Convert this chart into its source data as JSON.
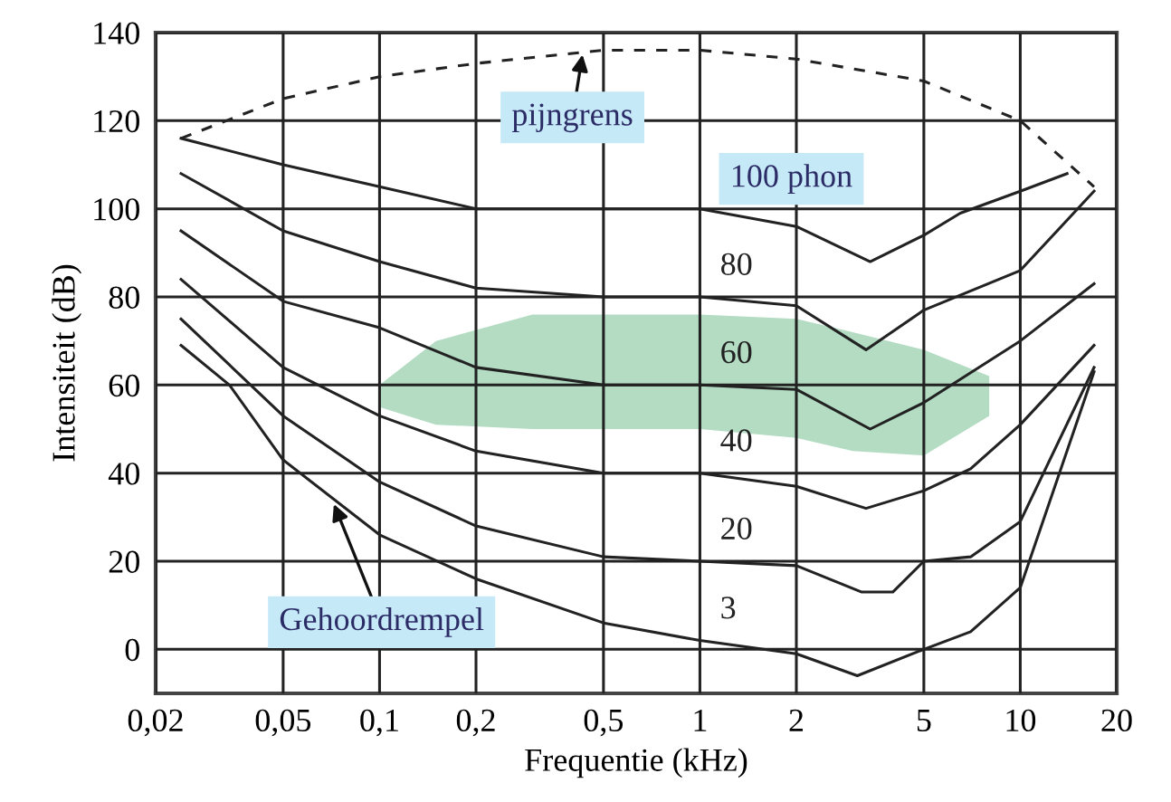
{
  "chart_data": {
    "type": "line",
    "xlabel": "Frequentie (kHz)",
    "ylabel": "Intensiteit (dB)",
    "log": "x",
    "xlim": [
      0.02,
      20
    ],
    "ylim": [
      -10,
      140
    ],
    "xticks": [
      {
        "value": 0.02,
        "label": "0,02"
      },
      {
        "value": 0.05,
        "label": "0,05"
      },
      {
        "value": 0.1,
        "label": "0,1"
      },
      {
        "value": 0.2,
        "label": "0,2"
      },
      {
        "value": 0.5,
        "label": "0,5"
      },
      1,
      2,
      5,
      10,
      20
    ],
    "yticks": [
      0,
      20,
      40,
      60,
      80,
      100,
      120,
      140
    ],
    "grid": true,
    "marker": "none",
    "series": [
      {
        "color": "#b3dcc3",
        "x": [
          0.1,
          0.15,
          0.3,
          1,
          2,
          3,
          5,
          8
        ],
        "values": [
          null,
          null,
          null,
          null,
          null,
          null,
          null,
          null
        ],
        "lower": [
          55,
          51,
          50,
          50,
          48,
          45,
          44,
          53
        ],
        "upper": [
          60,
          70,
          76,
          76,
          75,
          72,
          68,
          62
        ]
      },
      {
        "color": "#222222",
        "line_style": "dashed",
        "x": [
          0.024,
          0.05,
          0.1,
          0.2,
          0.5,
          1,
          2,
          5,
          10,
          17
        ],
        "values": [
          116,
          125,
          130,
          133,
          136,
          136,
          134,
          129,
          120,
          105
        ]
      },
      {
        "name": "100 phon",
        "color": "#222222",
        "x": [
          0.024,
          0.05,
          0.1,
          0.2,
          0.5,
          1,
          2,
          3.4,
          5,
          6.5,
          10,
          14
        ],
        "values": [
          116,
          110,
          105,
          100,
          100,
          100,
          96,
          88,
          94,
          99,
          104,
          108
        ]
      },
      {
        "name": "80",
        "color": "#222222",
        "x": [
          0.024,
          0.05,
          0.1,
          0.2,
          0.5,
          1,
          2,
          3.3,
          5,
          10,
          17
        ],
        "values": [
          108,
          95,
          88,
          82,
          80,
          80,
          78,
          68,
          77,
          86,
          104
        ]
      },
      {
        "name": "60",
        "color": "#222222",
        "x": [
          0.024,
          0.05,
          0.1,
          0.2,
          0.5,
          1,
          2,
          3.4,
          5,
          10,
          17
        ],
        "values": [
          95,
          79,
          73,
          64,
          60,
          60,
          59,
          50,
          56,
          70,
          83
        ]
      },
      {
        "name": "40",
        "color": "#222222",
        "x": [
          0.024,
          0.05,
          0.1,
          0.2,
          0.5,
          1,
          2,
          3.3,
          5,
          7,
          10,
          17
        ],
        "values": [
          84,
          64,
          53,
          45,
          40,
          40,
          37,
          32,
          36,
          41,
          51,
          69
        ]
      },
      {
        "name": "20",
        "color": "#222222",
        "x": [
          0.024,
          0.05,
          0.1,
          0.2,
          0.5,
          1,
          2,
          3.2,
          4,
          5,
          7,
          10,
          17
        ],
        "values": [
          75,
          53,
          38,
          28,
          21,
          20,
          19,
          13,
          13,
          20,
          21,
          29,
          64
        ]
      },
      {
        "name": "3",
        "color": "#222222",
        "x": [
          0.024,
          0.034,
          0.05,
          0.1,
          0.2,
          0.5,
          1,
          2,
          3.1,
          5,
          7,
          10,
          17
        ],
        "values": [
          69,
          60,
          43,
          26,
          16,
          6,
          2,
          -1,
          -6,
          0,
          4,
          14,
          63
        ]
      }
    ],
    "annotations": [
      {
        "text": "pijngrens",
        "x": 0.43,
        "y": 135
      },
      {
        "text": "Gehoordrempel",
        "x": 0.072,
        "y": 33
      }
    ]
  }
}
